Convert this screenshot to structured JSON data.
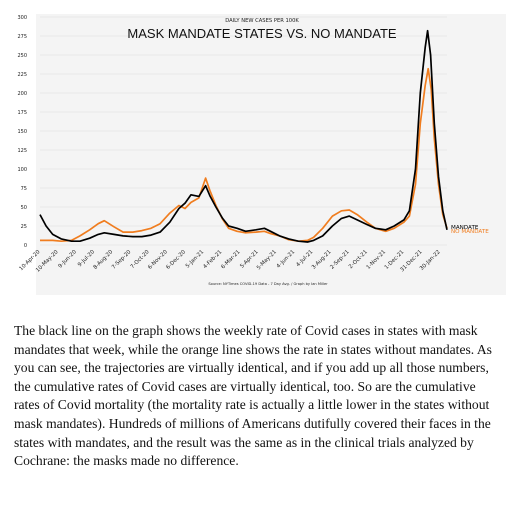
{
  "chart_data": {
    "type": "line",
    "subtitle": "DAILY NEW CASES PER 100K",
    "title": "MASK MANDATE STATES VS. NO MANDATE",
    "source": "Source: NYTimes COVID-19 Data - 7 Day Avg. / Graph by Ian Miller",
    "ylim": [
      0,
      300
    ],
    "yticks": [
      0,
      25,
      50,
      75,
      100,
      125,
      150,
      175,
      200,
      225,
      250,
      275,
      300
    ],
    "x_range": [
      "2020-04-10",
      "2022-02-10"
    ],
    "xticks": [
      {
        "date": "2020-04-10",
        "label": "10-Apr-20"
      },
      {
        "date": "2020-05-10",
        "label": "10-May-20"
      },
      {
        "date": "2020-06-09",
        "label": "9-Jun-20"
      },
      {
        "date": "2020-07-09",
        "label": "9-Jul-20"
      },
      {
        "date": "2020-08-08",
        "label": "8-Aug-20"
      },
      {
        "date": "2020-09-07",
        "label": "7-Sep-20"
      },
      {
        "date": "2020-10-07",
        "label": "7-Oct-20"
      },
      {
        "date": "2020-11-06",
        "label": "6-Nov-20"
      },
      {
        "date": "2020-12-06",
        "label": "6-Dec-20"
      },
      {
        "date": "2021-01-05",
        "label": "5-Jan-21"
      },
      {
        "date": "2021-02-04",
        "label": "4-Feb-21"
      },
      {
        "date": "2021-03-06",
        "label": "6-Mar-21"
      },
      {
        "date": "2021-04-05",
        "label": "5-Apr-21"
      },
      {
        "date": "2021-05-05",
        "label": "5-May-21"
      },
      {
        "date": "2021-06-04",
        "label": "4-Jun-21"
      },
      {
        "date": "2021-07-04",
        "label": "4-Jul-21"
      },
      {
        "date": "2021-08-03",
        "label": "3-Aug-21"
      },
      {
        "date": "2021-09-02",
        "label": "2-Sep-21"
      },
      {
        "date": "2021-10-02",
        "label": "2-Oct-21"
      },
      {
        "date": "2021-11-01",
        "label": "1-Nov-21"
      },
      {
        "date": "2021-12-01",
        "label": "1-Dec-21"
      },
      {
        "date": "2021-12-31",
        "label": "31-Dec-21"
      },
      {
        "date": "2022-01-30",
        "label": "30-Jan-22"
      }
    ],
    "series": [
      {
        "name": "MANDATE",
        "color": "#000000",
        "points": [
          [
            "2020-04-10",
            40
          ],
          [
            "2020-04-20",
            25
          ],
          [
            "2020-05-01",
            14
          ],
          [
            "2020-05-15",
            8
          ],
          [
            "2020-06-01",
            5
          ],
          [
            "2020-06-15",
            5
          ],
          [
            "2020-07-01",
            9
          ],
          [
            "2020-07-15",
            14
          ],
          [
            "2020-07-25",
            16
          ],
          [
            "2020-08-10",
            14
          ],
          [
            "2020-08-25",
            12
          ],
          [
            "2020-09-10",
            11
          ],
          [
            "2020-09-25",
            11
          ],
          [
            "2020-10-10",
            13
          ],
          [
            "2020-10-25",
            17
          ],
          [
            "2020-11-10",
            30
          ],
          [
            "2020-11-25",
            48
          ],
          [
            "2020-12-05",
            55
          ],
          [
            "2020-12-15",
            66
          ],
          [
            "2020-12-28",
            64
          ],
          [
            "2021-01-08",
            78
          ],
          [
            "2021-01-15",
            65
          ],
          [
            "2021-01-25",
            50
          ],
          [
            "2021-02-05",
            35
          ],
          [
            "2021-02-15",
            25
          ],
          [
            "2021-03-01",
            22
          ],
          [
            "2021-03-15",
            18
          ],
          [
            "2021-04-01",
            20
          ],
          [
            "2021-04-15",
            22
          ],
          [
            "2021-04-25",
            18
          ],
          [
            "2021-05-10",
            12
          ],
          [
            "2021-05-25",
            8
          ],
          [
            "2021-06-10",
            5
          ],
          [
            "2021-06-25",
            4
          ],
          [
            "2021-07-05",
            6
          ],
          [
            "2021-07-20",
            12
          ],
          [
            "2021-08-05",
            25
          ],
          [
            "2021-08-20",
            35
          ],
          [
            "2021-09-02",
            38
          ],
          [
            "2021-09-15",
            33
          ],
          [
            "2021-10-01",
            27
          ],
          [
            "2021-10-15",
            22
          ],
          [
            "2021-11-01",
            20
          ],
          [
            "2021-11-15",
            25
          ],
          [
            "2021-12-01",
            33
          ],
          [
            "2021-12-10",
            45
          ],
          [
            "2021-12-20",
            100
          ],
          [
            "2021-12-28",
            200
          ],
          [
            "2022-01-05",
            260
          ],
          [
            "2022-01-09",
            282
          ],
          [
            "2022-01-14",
            250
          ],
          [
            "2022-01-20",
            160
          ],
          [
            "2022-01-27",
            90
          ],
          [
            "2022-02-03",
            45
          ],
          [
            "2022-02-10",
            20
          ]
        ]
      },
      {
        "name": "NO MANDATE",
        "color": "#f07d1f",
        "points": [
          [
            "2020-04-10",
            6
          ],
          [
            "2020-05-01",
            6
          ],
          [
            "2020-05-15",
            5
          ],
          [
            "2020-06-01",
            6
          ],
          [
            "2020-06-15",
            12
          ],
          [
            "2020-07-01",
            20
          ],
          [
            "2020-07-15",
            28
          ],
          [
            "2020-07-25",
            32
          ],
          [
            "2020-08-10",
            24
          ],
          [
            "2020-08-25",
            17
          ],
          [
            "2020-09-10",
            17
          ],
          [
            "2020-09-25",
            19
          ],
          [
            "2020-10-10",
            22
          ],
          [
            "2020-10-25",
            28
          ],
          [
            "2020-11-10",
            42
          ],
          [
            "2020-11-25",
            52
          ],
          [
            "2020-12-05",
            48
          ],
          [
            "2020-12-15",
            56
          ],
          [
            "2020-12-28",
            62
          ],
          [
            "2021-01-08",
            88
          ],
          [
            "2021-01-15",
            72
          ],
          [
            "2021-01-25",
            52
          ],
          [
            "2021-02-05",
            34
          ],
          [
            "2021-02-15",
            22
          ],
          [
            "2021-03-01",
            18
          ],
          [
            "2021-03-15",
            16
          ],
          [
            "2021-04-01",
            17
          ],
          [
            "2021-04-15",
            18
          ],
          [
            "2021-04-25",
            15
          ],
          [
            "2021-05-10",
            12
          ],
          [
            "2021-05-25",
            7
          ],
          [
            "2021-06-10",
            5
          ],
          [
            "2021-06-25",
            6
          ],
          [
            "2021-07-05",
            10
          ],
          [
            "2021-07-20",
            22
          ],
          [
            "2021-08-05",
            38
          ],
          [
            "2021-08-20",
            45
          ],
          [
            "2021-09-02",
            46
          ],
          [
            "2021-09-15",
            40
          ],
          [
            "2021-10-01",
            30
          ],
          [
            "2021-10-15",
            22
          ],
          [
            "2021-11-01",
            18
          ],
          [
            "2021-11-15",
            22
          ],
          [
            "2021-12-01",
            30
          ],
          [
            "2021-12-10",
            38
          ],
          [
            "2021-12-20",
            80
          ],
          [
            "2021-12-28",
            160
          ],
          [
            "2022-01-05",
            210
          ],
          [
            "2022-01-10",
            232
          ],
          [
            "2022-01-15",
            205
          ],
          [
            "2022-01-20",
            140
          ],
          [
            "2022-01-27",
            80
          ],
          [
            "2022-02-03",
            40
          ],
          [
            "2022-02-10",
            22
          ]
        ]
      }
    ],
    "grid": true,
    "legend": "direct labels at line ends"
  },
  "article": {
    "paragraph": "The black line on the graph shows the weekly rate of Covid cases in states with mask mandates that week, while the orange line shows the rate in states without mandates. As you can see, the trajectories are virtually identical, and if you add up all those numbers, the cumulative rates of Covid cases are virtually identical, too. So are the cumulative rates of Covid mortality (the mortality rate is actually a little lower in the states without mask mandates). Hundreds of millions of Americans dutifully covered their faces in the states with mandates, and the result was the same as in the clinical trials analyzed by Cochrane: the masks made no difference."
  }
}
